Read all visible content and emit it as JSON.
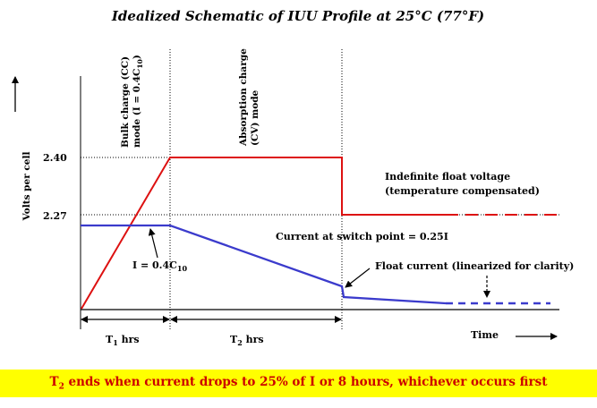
{
  "title": "Idealized Schematic of IUU Profile at 25°C (77°F)",
  "y_axis_label": "Volts per cell",
  "x_axis_label": "Time",
  "y_ticks": [
    "2.40",
    "2.27"
  ],
  "phases": {
    "bulk": {
      "line1": "Bulk charge (CC)",
      "line2_prefix": "mode (I = 0.4C",
      "line2_sub": "10",
      "line2_suffix": ")"
    },
    "absorption": {
      "line1": "Absorption charge",
      "line2": "(CV) mode"
    }
  },
  "annotations": {
    "float_voltage_line1": "Indefinite float voltage",
    "float_voltage_line2": "(temperature compensated)",
    "current_switch": "Current at switch point = 0.25I",
    "float_current": "Float current (linearized for clarity)",
    "bulk_current_prefix": "I = 0.4C",
    "bulk_current_sub": "10"
  },
  "intervals": {
    "t1": {
      "base": "T",
      "sub": "1",
      "suffix": " hrs"
    },
    "t2": {
      "base": "T",
      "sub": "2",
      "suffix": " hrs"
    }
  },
  "footer": {
    "base": "T",
    "sub": "2",
    "text": " ends when current drops to 25% of I or 8 hours, whichever occurs first"
  },
  "colors": {
    "voltage": "#dd1111",
    "current": "#3b3bcc",
    "footer_bg": "#ffff00",
    "footer_text": "#cc0000"
  }
}
